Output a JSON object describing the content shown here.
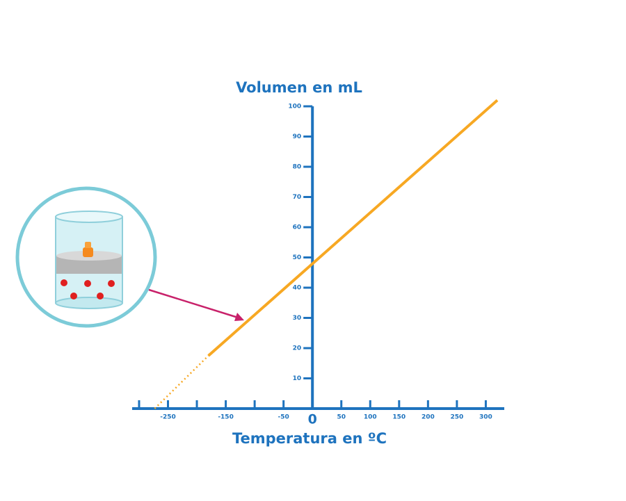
{
  "chart_data": {
    "type": "line",
    "y_title": "Volumen en mL",
    "x_title": "Temperatura en ºC",
    "xlim": [
      -312,
      332
    ],
    "ylim": [
      0,
      100
    ],
    "xticks": [
      -250,
      -150,
      -50,
      0,
      50,
      100,
      150,
      200,
      250,
      300
    ],
    "xminorticks": [
      -300,
      -200,
      -100
    ],
    "yticks": [
      10,
      20,
      30,
      40,
      50,
      60,
      70,
      80,
      90,
      100
    ],
    "axis_color": "#1e73be",
    "series": [
      {
        "x": [
          -180,
          320
        ],
        "values": [
          17.5,
          102
        ],
        "color": "#f7a823",
        "style": "solid"
      },
      {
        "x": [
          -273,
          -180
        ],
        "values": [
          0,
          17.5
        ],
        "color": "#f7a823",
        "style": "dotted"
      }
    ]
  }
}
